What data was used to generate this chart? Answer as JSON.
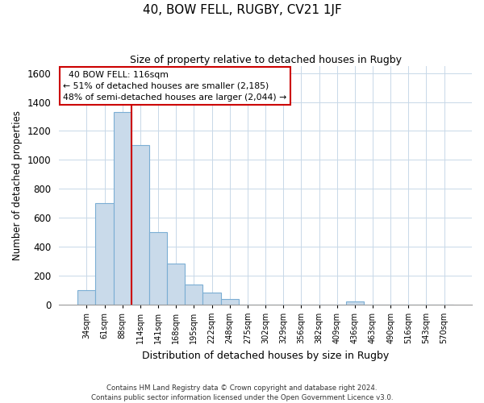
{
  "title": "40, BOW FELL, RUGBY, CV21 1JF",
  "subtitle": "Size of property relative to detached houses in Rugby",
  "xlabel": "Distribution of detached houses by size in Rugby",
  "ylabel": "Number of detached properties",
  "bar_labels": [
    "34sqm",
    "61sqm",
    "88sqm",
    "114sqm",
    "141sqm",
    "168sqm",
    "195sqm",
    "222sqm",
    "248sqm",
    "275sqm",
    "302sqm",
    "329sqm",
    "356sqm",
    "382sqm",
    "409sqm",
    "436sqm",
    "463sqm",
    "490sqm",
    "516sqm",
    "543sqm",
    "570sqm"
  ],
  "bar_values": [
    100,
    700,
    1330,
    1100,
    500,
    280,
    140,
    80,
    35,
    0,
    0,
    0,
    0,
    0,
    0,
    20,
    0,
    0,
    0,
    0,
    0
  ],
  "bar_color": "#c9daea",
  "bar_edge_color": "#7baed4",
  "vline_color": "#cc0000",
  "vline_x": 2.5,
  "ylim": [
    0,
    1650
  ],
  "yticks": [
    0,
    200,
    400,
    600,
    800,
    1000,
    1200,
    1400,
    1600
  ],
  "annotation_text": "  40 BOW FELL: 116sqm  \n← 51% of detached houses are smaller (2,185)\n48% of semi-detached houses are larger (2,044) →",
  "annotation_box_color": "#ffffff",
  "annotation_box_edge": "#cc0000",
  "footer_line1": "Contains HM Land Registry data © Crown copyright and database right 2024.",
  "footer_line2": "Contains public sector information licensed under the Open Government Licence v3.0.",
  "background_color": "#ffffff",
  "grid_color": "#c8d8e8"
}
